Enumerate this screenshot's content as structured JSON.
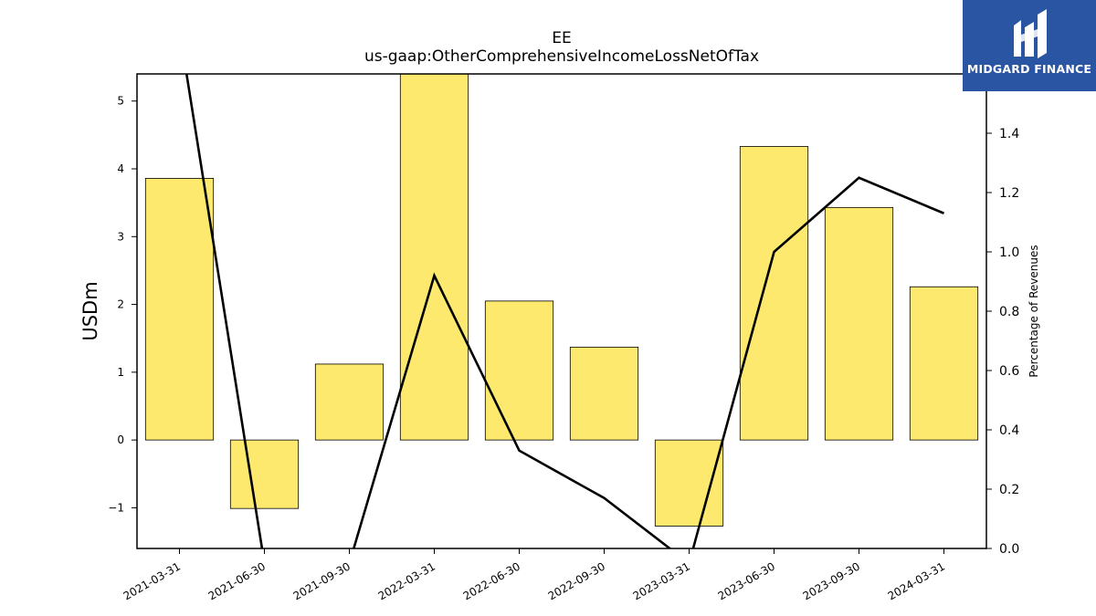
{
  "chart_data": {
    "type": "bar",
    "title": "EE",
    "subtitle": "us-gaap:OtherComprehensiveIncomeLossNetOfTax",
    "ylabel": "USDm",
    "y2label": "Percentage of Revenues",
    "categories": [
      "2021-03-31",
      "2021-06-30",
      "2021-09-30",
      "2022-03-31",
      "2022-06-30",
      "2022-09-30",
      "2023-03-31",
      "2023-06-30",
      "2023-09-30",
      "2024-03-31"
    ],
    "series": [
      {
        "axis": "left",
        "kind": "bar",
        "values": [
          3.86,
          -1.01,
          1.12,
          5.6,
          2.05,
          1.37,
          -1.27,
          4.33,
          3.43,
          2.26
        ],
        "color": "#fde96e"
      },
      {
        "axis": "right",
        "kind": "line",
        "values": [
          1.75,
          -0.05,
          -0.05,
          0.92,
          0.33,
          0.17,
          -0.05,
          1.0,
          1.25,
          1.13
        ],
        "color": "#000000"
      }
    ],
    "ylim": [
      -1.6,
      5.4
    ],
    "y2lim": [
      0.0,
      1.6
    ],
    "yticks": [
      -1,
      0,
      1,
      2,
      3,
      4,
      5
    ],
    "yticklabels": [
      "−1",
      "0",
      "1",
      "2",
      "3",
      "4",
      "5"
    ],
    "y2ticks": [
      0.0,
      0.2,
      0.4,
      0.6,
      0.8,
      1.0,
      1.2,
      1.4
    ],
    "y2ticklabels": [
      "0.0",
      "0.2",
      "0.4",
      "0.6",
      "0.8",
      "1.0",
      "1.2",
      "1.4"
    ],
    "grid": false,
    "legend": "none"
  },
  "logo": {
    "text": "MIDGARD FINANCE",
    "background": "#2a55a3"
  }
}
